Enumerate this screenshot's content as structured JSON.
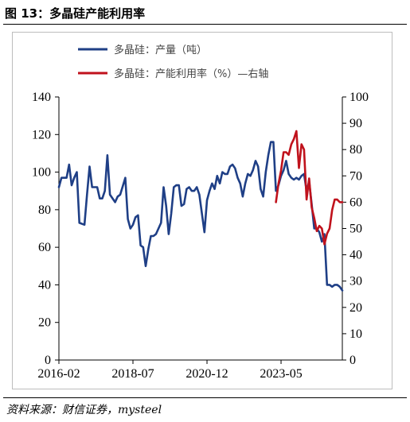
{
  "figure": {
    "title": "图 13：多晶硅产能利用率",
    "source": "资料来源：财信证券，mysteel"
  },
  "colors": {
    "production": "#1f3f86",
    "utilization": "#c0121c",
    "axis": "#000000",
    "frame": "#bdbdbd"
  },
  "chart_data": {
    "type": "line",
    "title": "",
    "x_ticks": [
      "2016-02",
      "2018-07",
      "2020-12",
      "2023-05"
    ],
    "x_range": [
      "2016-02",
      "2025-05"
    ],
    "y_left": {
      "ticks": [
        0,
        20,
        40,
        60,
        80,
        100,
        120,
        140
      ],
      "range": [
        0,
        140
      ]
    },
    "y_right": {
      "ticks": [
        0,
        10,
        20,
        30,
        40,
        50,
        60,
        70,
        80,
        90,
        100
      ],
      "range": [
        0,
        100
      ]
    },
    "grid": false,
    "legend_position": "top",
    "series": [
      {
        "name": "多晶硅：产量（吨）",
        "axis": "left",
        "color": "#1f3f86",
        "points": [
          [
            "2016-02",
            92
          ],
          [
            "2016-03",
            97
          ],
          [
            "2016-05",
            97
          ],
          [
            "2016-06",
            104
          ],
          [
            "2016-07",
            93
          ],
          [
            "2016-08",
            97
          ],
          [
            "2016-09",
            100
          ],
          [
            "2016-10",
            73
          ],
          [
            "2016-12",
            72
          ],
          [
            "2017-01",
            88
          ],
          [
            "2017-02",
            103
          ],
          [
            "2017-03",
            92
          ],
          [
            "2017-05",
            92
          ],
          [
            "2017-06",
            86
          ],
          [
            "2017-07",
            86
          ],
          [
            "2017-08",
            90
          ],
          [
            "2017-09",
            109
          ],
          [
            "2017-10",
            88
          ],
          [
            "2017-12",
            84
          ],
          [
            "2018-01",
            87
          ],
          [
            "2018-02",
            88
          ],
          [
            "2018-04",
            97
          ],
          [
            "2018-05",
            75
          ],
          [
            "2018-06",
            70
          ],
          [
            "2018-07",
            72
          ],
          [
            "2018-08",
            76
          ],
          [
            "2018-09",
            77
          ],
          [
            "2018-10",
            61
          ],
          [
            "2018-11",
            60
          ],
          [
            "2018-12",
            50
          ],
          [
            "2019-01",
            59
          ],
          [
            "2019-02",
            66
          ],
          [
            "2019-03",
            66
          ],
          [
            "2019-04",
            67
          ],
          [
            "2019-06",
            73
          ],
          [
            "2019-07",
            92
          ],
          [
            "2019-08",
            82
          ],
          [
            "2019-09",
            67
          ],
          [
            "2019-10",
            78
          ],
          [
            "2019-11",
            92
          ],
          [
            "2019-12",
            93
          ],
          [
            "2020-01",
            93
          ],
          [
            "2020-02",
            82
          ],
          [
            "2020-03",
            83
          ],
          [
            "2020-04",
            91
          ],
          [
            "2020-05",
            92
          ],
          [
            "2020-06",
            90
          ],
          [
            "2020-07",
            90
          ],
          [
            "2020-08",
            92
          ],
          [
            "2020-09",
            88
          ],
          [
            "2020-10",
            78
          ],
          [
            "2020-11",
            68
          ],
          [
            "2020-12",
            85
          ],
          [
            "2021-01",
            90
          ],
          [
            "2021-02",
            94
          ],
          [
            "2021-03",
            91
          ],
          [
            "2021-04",
            98
          ],
          [
            "2021-05",
            94
          ],
          [
            "2021-06",
            100
          ],
          [
            "2021-07",
            99
          ],
          [
            "2021-08",
            99
          ],
          [
            "2021-09",
            103
          ],
          [
            "2021-10",
            104
          ],
          [
            "2021-11",
            102
          ],
          [
            "2021-12",
            97
          ],
          [
            "2022-01",
            94
          ],
          [
            "2022-02",
            87
          ],
          [
            "2022-03",
            94
          ],
          [
            "2022-04",
            99
          ],
          [
            "2022-05",
            98
          ],
          [
            "2022-06",
            101
          ],
          [
            "2022-07",
            106
          ],
          [
            "2022-08",
            103
          ],
          [
            "2022-09",
            91
          ],
          [
            "2022-10",
            87
          ],
          [
            "2022-11",
            100
          ],
          [
            "2022-12",
            109
          ],
          [
            "2023-01",
            116
          ],
          [
            "2023-02",
            116
          ],
          [
            "2023-03",
            90
          ],
          [
            "2023-04",
            93
          ],
          [
            "2023-05",
            98
          ],
          [
            "2023-06",
            101
          ],
          [
            "2023-07",
            106
          ],
          [
            "2023-08",
            99
          ],
          [
            "2023-09",
            97
          ],
          [
            "2023-10",
            96
          ],
          [
            "2023-11",
            97
          ],
          [
            "2023-12",
            96
          ],
          [
            "2024-01",
            98
          ],
          [
            "2024-02",
            99
          ],
          [
            "2024-03",
            90
          ],
          [
            "2024-04",
            95
          ],
          [
            "2024-05",
            83
          ],
          [
            "2024-06",
            70
          ],
          [
            "2024-07",
            70
          ],
          [
            "2024-08",
            68
          ],
          [
            "2024-09",
            63
          ],
          [
            "2024-10",
            67
          ],
          [
            "2024-11",
            40
          ],
          [
            "2024-12",
            40
          ],
          [
            "2025-01",
            39
          ],
          [
            "2025-02",
            40
          ],
          [
            "2025-03",
            40
          ],
          [
            "2025-04",
            39
          ],
          [
            "2025-05",
            37
          ]
        ]
      },
      {
        "name": "多晶硅：产能利用率（%）—右轴",
        "axis": "right",
        "color": "#c0121c",
        "points": [
          [
            "2023-03",
            60
          ],
          [
            "2023-04",
            67
          ],
          [
            "2023-05",
            72
          ],
          [
            "2023-06",
            79
          ],
          [
            "2023-07",
            79
          ],
          [
            "2023-08",
            78
          ],
          [
            "2023-09",
            82
          ],
          [
            "2023-10",
            84
          ],
          [
            "2023-11",
            87
          ],
          [
            "2023-12",
            73
          ],
          [
            "2024-01",
            82
          ],
          [
            "2024-02",
            80
          ],
          [
            "2024-03",
            61
          ],
          [
            "2024-04",
            69
          ],
          [
            "2024-05",
            58
          ],
          [
            "2024-06",
            54
          ],
          [
            "2024-07",
            49
          ],
          [
            "2024-08",
            51
          ],
          [
            "2024-09",
            50
          ],
          [
            "2024-10",
            44
          ],
          [
            "2024-11",
            48
          ],
          [
            "2024-12",
            50
          ],
          [
            "2025-01",
            57
          ],
          [
            "2025-02",
            61
          ],
          [
            "2025-03",
            61
          ],
          [
            "2025-04",
            60
          ],
          [
            "2025-05",
            60
          ]
        ]
      }
    ]
  }
}
